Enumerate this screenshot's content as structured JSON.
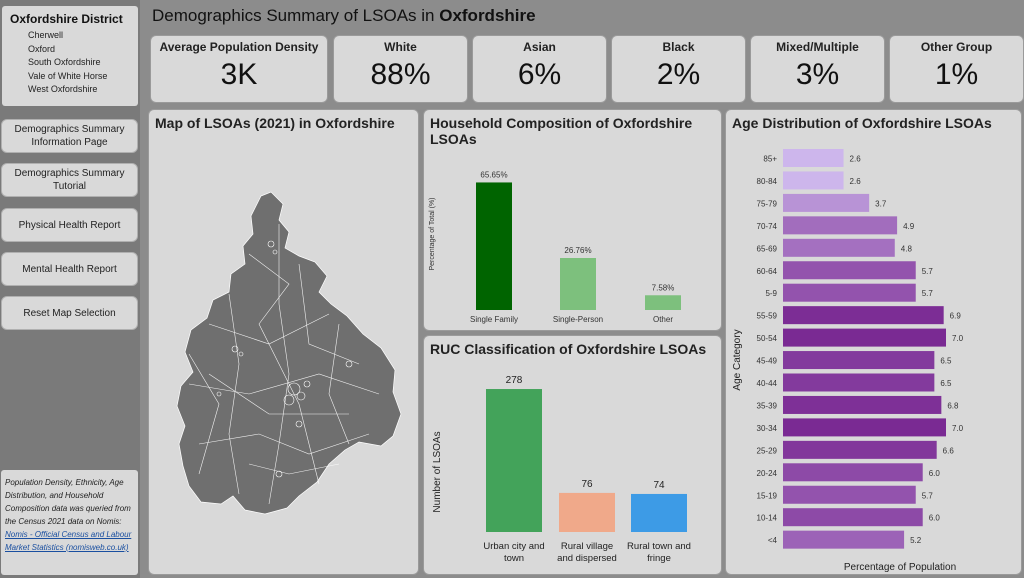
{
  "sidebar": {
    "filter_title": "Oxfordshire District",
    "districts": [
      "Cherwell",
      "Oxford",
      "South Oxfordshire",
      "Vale of White Horse",
      "West Oxfordshire"
    ],
    "nav_buttons": [
      {
        "label": "Demographics Summary Information Page"
      },
      {
        "label": "Demographics Summary Tutorial"
      },
      {
        "label": "Physical Health Report"
      },
      {
        "label": "Mental Health Report"
      },
      {
        "label": "Reset Map Selection"
      }
    ],
    "note_text": "Population Density, Ethnicity, Age Distribution, and Household Composition data was queried from the Census 2021 data on Nomis: ",
    "note_link": "Nomis - Official Census and Labour Market Statistics (nomisweb.co.uk)"
  },
  "header": {
    "title_prefix": "Demographics Summary of LSOAs in ",
    "title_bold": "Oxfordshire"
  },
  "kpis": [
    {
      "label": "Average Population Density",
      "value": "3K"
    },
    {
      "label": "White",
      "value": "88%"
    },
    {
      "label": "Asian",
      "value": "6%"
    },
    {
      "label": "Black",
      "value": "2%"
    },
    {
      "label": "Mixed/Multiple",
      "value": "3%"
    },
    {
      "label": "Other Group",
      "value": "1%"
    }
  ],
  "map_panel": {
    "title": "Map of LSOAs (2021) in Oxfordshire"
  },
  "chart_data": [
    {
      "type": "bar",
      "title": "Household Composition of Oxfordshire LSOAs",
      "ylabel": "Percentage of Total (%)",
      "xlabel": "",
      "categories": [
        "Single Family",
        "Single-Person",
        "Other"
      ],
      "values": [
        65.65,
        26.76,
        7.58
      ],
      "value_labels": [
        "65.65%",
        "26.76%",
        "7.58%"
      ],
      "colors": [
        "#006400",
        "#7dc07d",
        "#7dc07d"
      ],
      "ylim": [
        0,
        70
      ]
    },
    {
      "type": "bar",
      "title": "RUC Classification of Oxfordshire LSOAs",
      "ylabel": "Number of LSOAs",
      "xlabel": "",
      "categories": [
        "Urban city and town",
        "Rural village and dispersed",
        "Rural town and fringe"
      ],
      "values": [
        278,
        76,
        74
      ],
      "colors": [
        "#43a35a",
        "#f0a98a",
        "#3d9be6"
      ],
      "ylim": [
        0,
        300
      ]
    },
    {
      "type": "bar",
      "orientation": "horizontal",
      "title": "Age Distribution of Oxfordshire LSOAs",
      "ylabel": "Age Category",
      "xlabel": "Percentage of Population",
      "categories": [
        "85+",
        "80-84",
        "75-79",
        "70-74",
        "65-69",
        "60-64",
        "5-9",
        "55-59",
        "50-54",
        "45-49",
        "40-44",
        "35-39",
        "30-34",
        "25-29",
        "20-24",
        "15-19",
        "10-14",
        "<4"
      ],
      "values": [
        2.6,
        2.6,
        3.7,
        4.9,
        4.8,
        5.7,
        5.7,
        6.9,
        7.0,
        6.5,
        6.5,
        6.8,
        7.0,
        6.6,
        6.0,
        5.7,
        6.0,
        5.2
      ],
      "value_labels": [
        "2.6",
        "2.6",
        "3.7",
        "4.9",
        "4.8",
        "5.7",
        "5.7",
        "6.9",
        "7.0",
        "6.5",
        "6.5",
        "6.8",
        "7.0",
        "6.6",
        "6.0",
        "5.7",
        "6.0",
        "5.2"
      ],
      "xlim": [
        0,
        7.0
      ],
      "color_light": "#cdb6ec",
      "color_dark": "#7a2a93"
    }
  ]
}
